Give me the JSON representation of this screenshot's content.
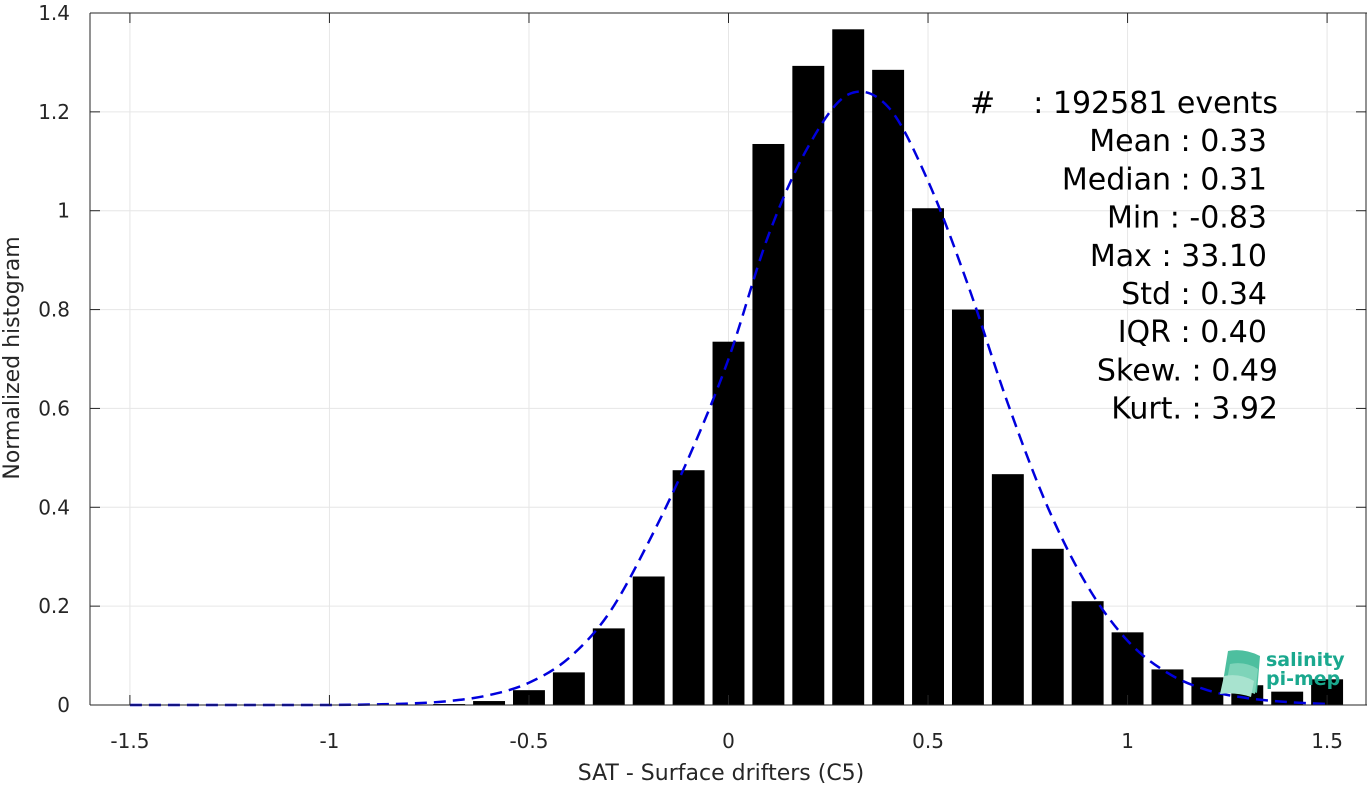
{
  "chart_data": {
    "type": "bar",
    "xlabel": "SAT - Surface drifters (C5)",
    "ylabel": "Normalized histogram",
    "xlim": [
      -1.6,
      1.6
    ],
    "ylim": [
      0,
      1.4
    ],
    "xticks": [
      -1.5,
      -1,
      -0.5,
      0,
      0.5,
      1,
      1.5
    ],
    "xtick_labels": [
      "-1.5",
      "-1",
      "-0.5",
      "0",
      "0.5",
      "1",
      "1.5"
    ],
    "yticks": [
      0,
      0.2,
      0.4,
      0.6,
      0.8,
      1,
      1.2,
      1.4
    ],
    "ytick_labels": [
      "0",
      "0.2",
      "0.4",
      "0.6",
      "0.8",
      "1",
      "1.2",
      "1.4"
    ],
    "grid": true,
    "bin_width": 0.1,
    "bar_color": "#000000",
    "x": [
      -1.5,
      -1.4,
      -1.3,
      -1.2,
      -1.1,
      -1.0,
      -0.9,
      -0.8,
      -0.7,
      -0.6,
      -0.5,
      -0.4,
      -0.3,
      -0.2,
      -0.1,
      0.0,
      0.1,
      0.2,
      0.3,
      0.4,
      0.5,
      0.6,
      0.7,
      0.8,
      0.9,
      1.0,
      1.1,
      1.2,
      1.3,
      1.4,
      1.5
    ],
    "values": [
      0,
      0,
      0,
      0,
      0,
      0,
      0,
      0,
      0.002,
      0.008,
      0.03,
      0.066,
      0.155,
      0.26,
      0.475,
      0.735,
      1.135,
      1.293,
      1.367,
      1.285,
      1.005,
      0.8,
      0.467,
      0.316,
      0.21,
      0.147,
      0.072,
      0.056,
      0.04,
      0.027,
      0.052
    ],
    "fit_curve": {
      "style": "dashed",
      "color": "#0000dd",
      "x": [
        -1.5,
        -1.4,
        -1.3,
        -1.2,
        -1.1,
        -1.0,
        -0.9,
        -0.8,
        -0.7,
        -0.6,
        -0.5,
        -0.4,
        -0.3,
        -0.2,
        -0.1,
        0.0,
        0.1,
        0.2,
        0.3,
        0.4,
        0.5,
        0.6,
        0.7,
        0.8,
        0.9,
        1.0,
        1.1,
        1.2,
        1.3,
        1.4,
        1.5
      ],
      "y": [
        0,
        0,
        0,
        0,
        0,
        0,
        0.001,
        0.003,
        0.008,
        0.02,
        0.045,
        0.095,
        0.185,
        0.33,
        0.5,
        0.7,
        0.95,
        1.13,
        1.235,
        1.21,
        1.06,
        0.85,
        0.61,
        0.4,
        0.24,
        0.13,
        0.065,
        0.03,
        0.014,
        0.006,
        0.002
      ]
    },
    "annotations": [
      {
        "label": "#",
        "value": ": 192581 events"
      },
      {
        "label": "Mean",
        "value": ": 0.33"
      },
      {
        "label": "Median",
        "value": ": 0.31"
      },
      {
        "label": "Min",
        "value": ": -0.83"
      },
      {
        "label": "Max",
        "value": ": 33.10"
      },
      {
        "label": "Std",
        "value": ": 0.34"
      },
      {
        "label": "IQR",
        "value": ": 0.40"
      },
      {
        "label": "Skew.",
        "value": ": 0.49"
      },
      {
        "label": "Kurt.",
        "value": ": 3.92"
      }
    ]
  },
  "logo": {
    "line1": "salinity",
    "line2": "pi-mep",
    "color": "#1aa88e"
  }
}
